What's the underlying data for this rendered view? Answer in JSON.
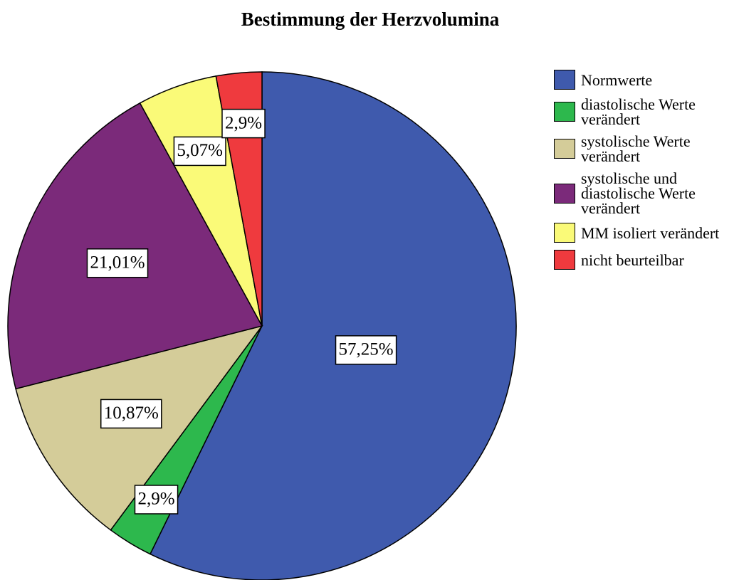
{
  "chart_data": {
    "type": "pie",
    "title": "Bestimmung der Herzvolumina",
    "categories": [
      "Normwerte",
      "diastolische Werte verändert",
      "systolische Werte verändert",
      "systolische und diastolische Werte verändert",
      "MM isoliert verändert",
      "nicht beurteilbar"
    ],
    "values": [
      57.25,
      2.9,
      10.87,
      21.01,
      5.07,
      2.9
    ],
    "value_labels": [
      "57,25%",
      "2,9%",
      "10,87%",
      "21,01%",
      "5,07%",
      "2,9%"
    ],
    "colors": [
      "#3f5aad",
      "#2db84d",
      "#d4cc99",
      "#7b2a7a",
      "#fafa78",
      "#ef3a3e"
    ],
    "legend": "right"
  }
}
